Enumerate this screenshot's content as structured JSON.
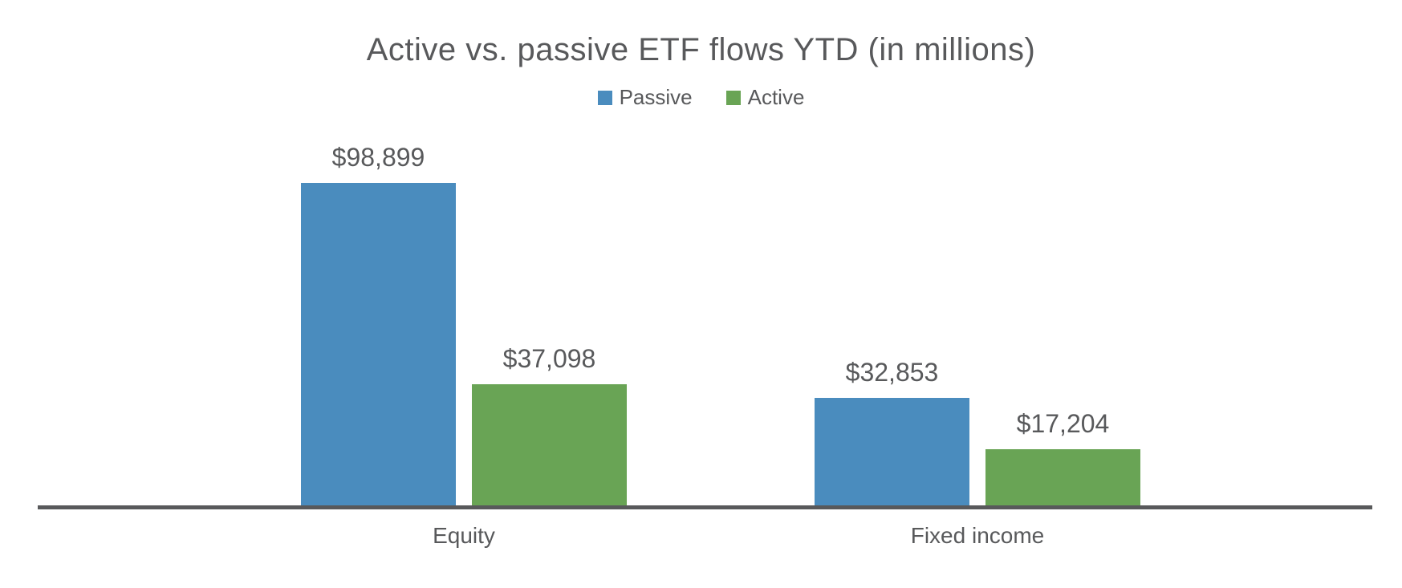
{
  "chart_data": {
    "type": "bar",
    "title": "Active vs. passive ETF flows YTD (in millions)",
    "categories": [
      "Equity",
      "Fixed income"
    ],
    "series": [
      {
        "name": "Passive",
        "color": "#4A8CBE",
        "values": [
          98899,
          32853
        ],
        "labels": [
          "$98,899",
          "$32,853"
        ]
      },
      {
        "name": "Active",
        "color": "#69A455",
        "values": [
          37098,
          17204
        ],
        "labels": [
          "$37,098",
          "$17,204"
        ]
      }
    ],
    "ylim": [
      0,
      110000
    ],
    "xlabel": "",
    "ylabel": "",
    "grid": false,
    "legend_position": "top-center",
    "axis_color": "#58595B",
    "text_color": "#58595B",
    "background_color": "#FFFFFF"
  }
}
